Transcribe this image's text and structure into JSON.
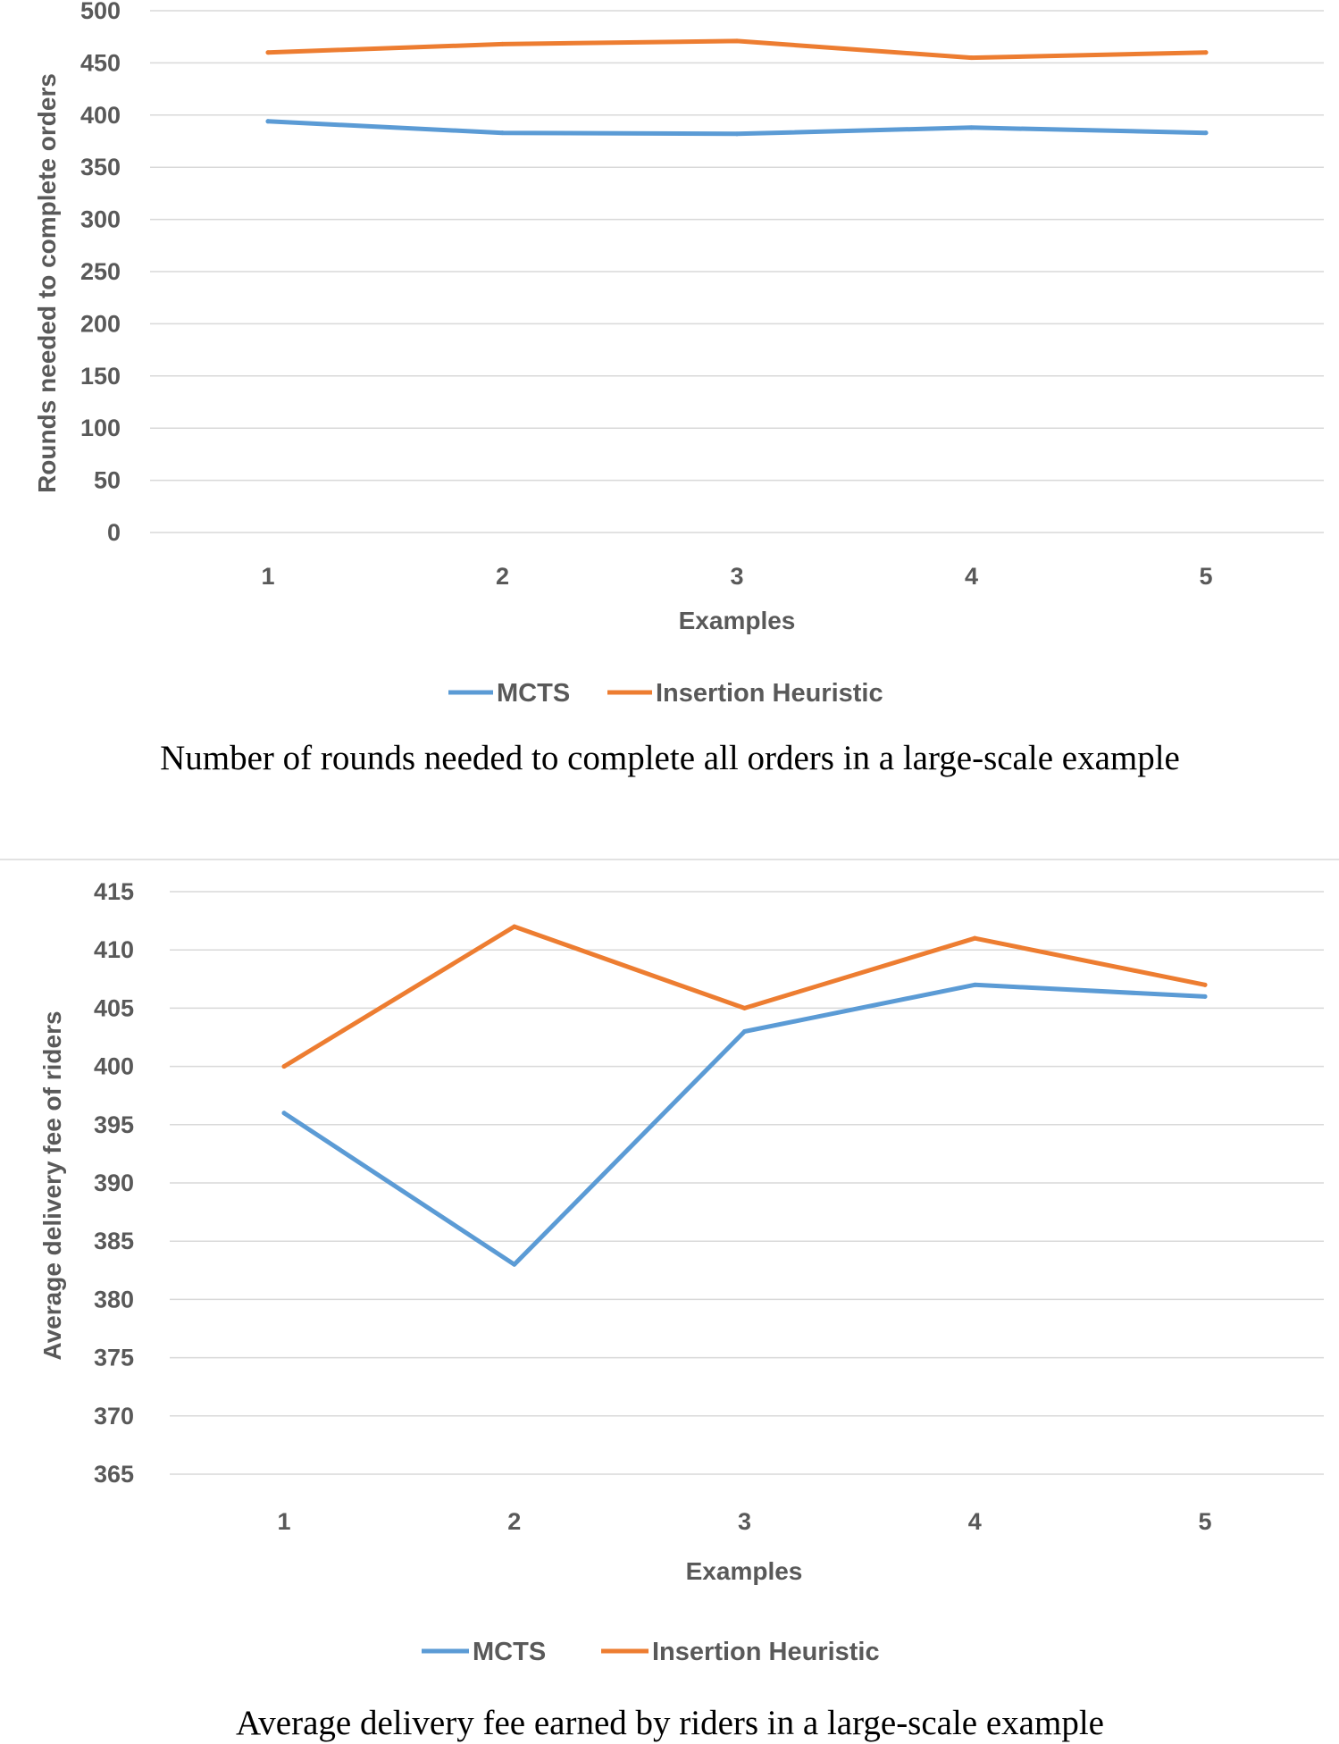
{
  "colors": {
    "mcts": "#5b9bd5",
    "insertion": "#ed7d31",
    "grid": "#d9d9d9",
    "text": "#595959"
  },
  "chart_data": [
    {
      "type": "line",
      "categories": [
        "1",
        "2",
        "3",
        "4",
        "5"
      ],
      "series": [
        {
          "name": "MCTS",
          "values": [
            394,
            383,
            382,
            388,
            383
          ]
        },
        {
          "name": "Insertion Heuristic",
          "values": [
            460,
            468,
            471,
            455,
            460
          ]
        }
      ],
      "yticks": [
        "0",
        "50",
        "100",
        "150",
        "200",
        "250",
        "300",
        "350",
        "400",
        "450",
        "500"
      ],
      "ylim": [
        0,
        500
      ],
      "xlabel": "Examples",
      "ylabel": "Rounds needed to complete orders",
      "grid": true,
      "legend": "bottom",
      "caption": "Number of rounds needed to complete all orders in a large-scale example"
    },
    {
      "type": "line",
      "categories": [
        "1",
        "2",
        "3",
        "4",
        "5"
      ],
      "series": [
        {
          "name": "MCTS",
          "values": [
            396,
            383,
            403,
            407,
            406
          ]
        },
        {
          "name": "Insertion Heuristic",
          "values": [
            400,
            412,
            405,
            411,
            407
          ]
        }
      ],
      "yticks": [
        "365",
        "370",
        "375",
        "380",
        "385",
        "390",
        "395",
        "400",
        "405",
        "410",
        "415"
      ],
      "ylim": [
        365,
        415
      ],
      "xlabel": "Examples",
      "ylabel": "Average delivery fee of riders",
      "grid": true,
      "legend": "bottom",
      "caption": "Average delivery fee earned by riders in a large-scale example"
    }
  ]
}
